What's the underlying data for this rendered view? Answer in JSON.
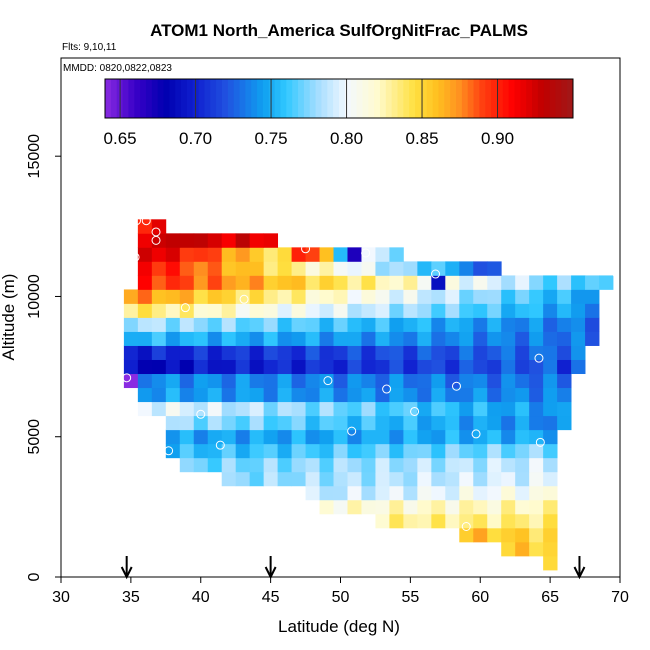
{
  "chart_data": {
    "type": "heatmap",
    "title": "ATOM1 North_America SulfOrgNitFrac_PALMS",
    "flights_note": "Flts: 9,10,11",
    "dates_note": "MMDD: 0820,0822,0823",
    "xlabel": "Latitude (deg N)",
    "ylabel": "Altitude (m)",
    "xlim": [
      30,
      70
    ],
    "ylim": [
      0,
      18500
    ],
    "x_ticks": [
      30,
      35,
      40,
      45,
      50,
      55,
      60,
      65,
      70
    ],
    "y_ticks": [
      0,
      5000,
      10000,
      15000
    ],
    "colorbar": {
      "range": [
        0.64,
        0.95
      ],
      "ticks": [
        0.65,
        0.7,
        0.75,
        0.8,
        0.85,
        0.9
      ],
      "tick_labels": [
        "0.65",
        "0.70",
        "0.75",
        "0.80",
        "0.85",
        "0.90"
      ],
      "color_stops": [
        {
          "v": 0.64,
          "c": "#8a2be2"
        },
        {
          "v": 0.66,
          "c": "#3a00c8"
        },
        {
          "v": 0.68,
          "c": "#0000b0"
        },
        {
          "v": 0.7,
          "c": "#1020d0"
        },
        {
          "v": 0.72,
          "c": "#2050e0"
        },
        {
          "v": 0.745,
          "c": "#10a0f0"
        },
        {
          "v": 0.76,
          "c": "#30c8ff"
        },
        {
          "v": 0.78,
          "c": "#a0dcff"
        },
        {
          "v": 0.8,
          "c": "#f2f8ff"
        },
        {
          "v": 0.82,
          "c": "#fffbd0"
        },
        {
          "v": 0.845,
          "c": "#ffe040"
        },
        {
          "v": 0.86,
          "c": "#ffc020"
        },
        {
          "v": 0.875,
          "c": "#ff9020"
        },
        {
          "v": 0.89,
          "c": "#ff4010"
        },
        {
          "v": 0.91,
          "c": "#ff0000"
        },
        {
          "v": 0.93,
          "c": "#c00000"
        },
        {
          "v": 0.95,
          "c": "#a01818"
        }
      ]
    },
    "cell_size": {
      "dlat": 1.0,
      "dalt": 500
    },
    "bands": [
      {
        "alt": 500,
        "lat0": 64.5,
        "lat1": 65.5,
        "start": 0.855,
        "end": 0.855
      },
      {
        "alt": 1000,
        "lat0": 61.5,
        "lat1": 65.5,
        "start": 0.855,
        "end": 0.85
      },
      {
        "alt": 1500,
        "lat0": 58.5,
        "lat1": 65.5,
        "start": 0.86,
        "end": 0.845
      },
      {
        "alt": 2000,
        "lat0": 52.5,
        "lat1": 65.5,
        "start": 0.83,
        "end": 0.835
      },
      {
        "alt": 2500,
        "lat0": 48.5,
        "lat1": 65.5,
        "start": 0.815,
        "end": 0.825
      },
      {
        "alt": 3000,
        "lat0": 47.5,
        "lat1": 65.5,
        "start": 0.785,
        "end": 0.81
      },
      {
        "alt": 3500,
        "lat0": 41.5,
        "lat1": 65.5,
        "start": 0.775,
        "end": 0.795
      },
      {
        "alt": 4000,
        "lat0": 38.5,
        "lat1": 65.5,
        "start": 0.77,
        "end": 0.79
      },
      {
        "alt": 4500,
        "lat0": 37.5,
        "lat1": 65.5,
        "start": 0.755,
        "end": 0.775
      },
      {
        "alt": 5000,
        "lat0": 37.5,
        "lat1": 65.5,
        "start": 0.745,
        "end": 0.75
      },
      {
        "alt": 5500,
        "lat0": 37.5,
        "lat1": 66.5,
        "start": 0.78,
        "end": 0.735
      },
      {
        "alt": 6000,
        "lat0": 35.5,
        "lat1": 66.5,
        "start": 0.8,
        "end": 0.74
      },
      {
        "alt": 6500,
        "lat0": 35.5,
        "lat1": 66.5,
        "start": 0.745,
        "end": 0.735
      },
      {
        "alt": 7000,
        "lat0": 34.5,
        "lat1": 66.5,
        "start": 0.74,
        "end": 0.73
      },
      {
        "alt": 7500,
        "lat0": 34.5,
        "lat1": 67.5,
        "start": 0.69,
        "end": 0.725
      },
      {
        "alt": 8000,
        "lat0": 34.5,
        "lat1": 67.5,
        "start": 0.7,
        "end": 0.73
      },
      {
        "alt": 8500,
        "lat0": 34.5,
        "lat1": 68.5,
        "start": 0.755,
        "end": 0.73
      },
      {
        "alt": 9000,
        "lat0": 34.5,
        "lat1": 68.5,
        "start": 0.785,
        "end": 0.73
      },
      {
        "alt": 9500,
        "lat0": 34.5,
        "lat1": 68.5,
        "start": 0.84,
        "end": 0.74
      },
      {
        "alt": 10000,
        "lat0": 34.5,
        "lat1": 68.5,
        "start": 0.875,
        "end": 0.745
      },
      {
        "alt": 10500,
        "lat0": 35.5,
        "lat1": 69.5,
        "start": 0.9,
        "end": 0.76
      },
      {
        "alt": 11000,
        "lat0": 35.5,
        "lat1": 61.5,
        "start": 0.91,
        "end": 0.73
      },
      {
        "alt": 11500,
        "lat0": 35.5,
        "lat1": 54.5,
        "start": 0.93,
        "end": 0.76
      },
      {
        "alt": 12000,
        "lat0": 35.5,
        "lat1": 45.5,
        "start": 0.925,
        "end": 0.92
      },
      {
        "alt": 12500,
        "lat0": 35.5,
        "lat1": 37.5,
        "start": 0.91,
        "end": 0.91
      }
    ],
    "cell_overrides": [
      {
        "lat": 51,
        "alt": 11500,
        "value": 0.67
      },
      {
        "lat": 50,
        "alt": 11500,
        "value": 0.755
      },
      {
        "lat": 49,
        "alt": 11500,
        "value": 0.86
      },
      {
        "lat": 48,
        "alt": 11500,
        "value": 0.89
      },
      {
        "lat": 47,
        "alt": 11500,
        "value": 0.9
      },
      {
        "lat": 52,
        "alt": 11500,
        "value": 0.8
      },
      {
        "lat": 53,
        "alt": 11500,
        "value": 0.79
      },
      {
        "lat": 57,
        "alt": 10500,
        "value": 0.69
      },
      {
        "lat": 60,
        "alt": 11000,
        "value": 0.72
      },
      {
        "lat": 38,
        "alt": 12000,
        "value": 0.93
      },
      {
        "lat": 39,
        "alt": 12000,
        "value": 0.93
      },
      {
        "lat": 35,
        "alt": 7000,
        "value": 0.64
      },
      {
        "lat": 37,
        "alt": 7500,
        "value": 0.68
      },
      {
        "lat": 39,
        "alt": 7500,
        "value": 0.68
      },
      {
        "lat": 36,
        "alt": 6000,
        "value": 0.8
      },
      {
        "lat": 66,
        "alt": 7500,
        "value": 0.7
      },
      {
        "lat": 64,
        "alt": 10500,
        "value": 0.775
      },
      {
        "lat": 65,
        "alt": 10500,
        "value": 0.76
      }
    ],
    "markers": [
      {
        "lat": 35.4,
        "alt": 12700
      },
      {
        "lat": 36.1,
        "alt": 12700
      },
      {
        "lat": 36.8,
        "alt": 12300
      },
      {
        "lat": 36.8,
        "alt": 12000
      },
      {
        "lat": 35.3,
        "alt": 11400
      },
      {
        "lat": 47.5,
        "alt": 11700
      },
      {
        "lat": 51.8,
        "alt": 11550
      },
      {
        "lat": 56.8,
        "alt": 10800
      },
      {
        "lat": 69.8,
        "alt": 10800
      },
      {
        "lat": 38.9,
        "alt": 9600
      },
      {
        "lat": 43.1,
        "alt": 9900
      },
      {
        "lat": 64.2,
        "alt": 7800
      },
      {
        "lat": 34.7,
        "alt": 7100
      },
      {
        "lat": 49.1,
        "alt": 7000
      },
      {
        "lat": 53.3,
        "alt": 6700
      },
      {
        "lat": 58.3,
        "alt": 6800
      },
      {
        "lat": 40.0,
        "alt": 5800
      },
      {
        "lat": 55.3,
        "alt": 5900
      },
      {
        "lat": 50.8,
        "alt": 5200
      },
      {
        "lat": 59.7,
        "alt": 5100
      },
      {
        "lat": 64.3,
        "alt": 4800
      },
      {
        "lat": 37.7,
        "alt": 4500
      },
      {
        "lat": 41.4,
        "alt": 4700
      },
      {
        "lat": 59.0,
        "alt": 1800
      }
    ],
    "arrows_at_latitude": [
      34.7,
      45.0,
      67.1
    ]
  }
}
